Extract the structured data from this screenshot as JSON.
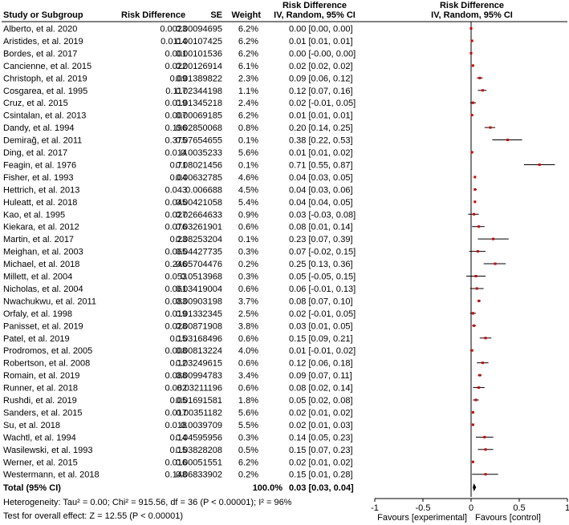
{
  "columns": {
    "study": "Study or Subgroup",
    "rd": "Risk Difference",
    "se": "SE",
    "weight": "Weight",
    "ci_title": "Risk Difference",
    "ci_sub": "IV, Random, 95% CI",
    "plot_title": "Risk Difference",
    "plot_sub": "IV, Random, 95% CI"
  },
  "total": {
    "label": "Total (95% CI)",
    "weight": "100.0%",
    "ci": "0.03 [0.03, 0.04]"
  },
  "heterogeneity": "Heterogeneity: Tau² = 0.00; Chi² = 915.56, df = 36 (P < 0.00001); I² = 96%",
  "overall_effect": "Test for overall effect: Z = 12.55 (P < 0.00001)",
  "colors": {
    "marker": "#cc0000",
    "line": "#000000"
  },
  "chart_data": {
    "type": "forest",
    "xlim": [
      -1,
      1
    ],
    "ticks": [
      -1,
      -0.5,
      0,
      0.5,
      1
    ],
    "tick_labels": [
      "-1",
      "-0.5",
      "0",
      "0.5",
      "1"
    ],
    "xlabel_left": "Favours [experimental]",
    "xlabel_right": "Favours [control]",
    "pooled": {
      "est": 0.03,
      "lo": 0.03,
      "hi": 0.04
    },
    "studies": [
      {
        "study": "Alberto, et al. 2020",
        "rd": "0.0023",
        "se": "0.00094695",
        "weight": "6.2%",
        "ci": "0.00 [0.00, 0.00]",
        "est": 0.0,
        "lo": 0.0,
        "hi": 0.0
      },
      {
        "study": "Aristides, et al. 2019",
        "rd": "0.0114",
        "se": "0.00107425",
        "weight": "6.2%",
        "ci": "0.01 [0.01, 0.01]",
        "est": 0.01,
        "lo": 0.01,
        "hi": 0.01
      },
      {
        "study": "Bordes, et al. 2017",
        "rd": "0.001",
        "se": "0.00101536",
        "weight": "6.2%",
        "ci": "0.00 [-0.00, 0.00]",
        "est": 0.0,
        "lo": -0.0,
        "hi": 0.0
      },
      {
        "study": "Cancienne, et al. 2015",
        "rd": "0.022",
        "se": "0.00126914",
        "weight": "6.1%",
        "ci": "0.02 [0.02, 0.02]",
        "est": 0.02,
        "lo": 0.02,
        "hi": 0.02
      },
      {
        "study": "Christoph, et al. 2019",
        "rd": "0.09",
        "se": "0.01389822",
        "weight": "2.3%",
        "ci": "0.09 [0.06, 0.12]",
        "est": 0.09,
        "lo": 0.06,
        "hi": 0.12
      },
      {
        "study": "Cosgarea, et al. 1995",
        "rd": "0.117",
        "se": "0.02344198",
        "weight": "1.1%",
        "ci": "0.12 [0.07, 0.16]",
        "est": 0.12,
        "lo": 0.07,
        "hi": 0.16
      },
      {
        "study": "Cruz, et al. 2015",
        "rd": "0.019",
        "se": "0.01345218",
        "weight": "2.4%",
        "ci": "0.02 [-0.01, 0.05]",
        "est": 0.02,
        "lo": -0.01,
        "hi": 0.05
      },
      {
        "study": "Csintalan, et al. 2013",
        "rd": "0.007",
        "se": "0.00069185",
        "weight": "6.2%",
        "ci": "0.01 [0.01, 0.01]",
        "est": 0.01,
        "lo": 0.01,
        "hi": 0.01
      },
      {
        "study": "Dandy, et al. 1994",
        "rd": "0.196",
        "se": "0.02850068",
        "weight": "0.8%",
        "ci": "0.20 [0.14, 0.25]",
        "est": 0.2,
        "lo": 0.14,
        "hi": 0.25
      },
      {
        "study": "Demirağ, et al. 2011",
        "rd": "0.375",
        "se": "0.07654655",
        "weight": "0.1%",
        "ci": "0.38 [0.22, 0.53]",
        "est": 0.38,
        "lo": 0.22,
        "hi": 0.53
      },
      {
        "study": "Ding, et al. 2017",
        "rd": "0.014",
        "se": "0.0035233",
        "weight": "5.6%",
        "ci": "0.01 [0.01, 0.02]",
        "est": 0.01,
        "lo": 0.01,
        "hi": 0.02
      },
      {
        "study": "Feagin, et al. 1976",
        "rd": "0.71",
        "se": "0.08021456",
        "weight": "0.1%",
        "ci": "0.71 [0.55, 0.87]",
        "est": 0.71,
        "lo": 0.55,
        "hi": 0.87
      },
      {
        "study": "Fisher, et al. 1993",
        "rd": "0.04",
        "se": "0.00632785",
        "weight": "4.6%",
        "ci": "0.04 [0.03, 0.05]",
        "est": 0.04,
        "lo": 0.03,
        "hi": 0.05
      },
      {
        "study": "Hettrich, et al. 2013",
        "rd": "0.043",
        "se": "0.006688",
        "weight": "4.5%",
        "ci": "0.04 [0.03, 0.06]",
        "est": 0.04,
        "lo": 0.03,
        "hi": 0.06
      },
      {
        "study": "Huleatt, et al. 2018",
        "rd": "0.045",
        "se": "0.00421058",
        "weight": "5.4%",
        "ci": "0.04 [0.04, 0.05]",
        "est": 0.04,
        "lo": 0.04,
        "hi": 0.05
      },
      {
        "study": "Kao, et al. 1995",
        "rd": "0.027",
        "se": "0.02664633",
        "weight": "0.9%",
        "ci": "0.03 [-0.03, 0.08]",
        "est": 0.03,
        "lo": -0.03,
        "hi": 0.08
      },
      {
        "study": "Kiekara, et al. 2012",
        "rd": "0.076",
        "se": "0.03261901",
        "weight": "0.6%",
        "ci": "0.08 [0.01, 0.14]",
        "est": 0.08,
        "lo": 0.01,
        "hi": 0.14
      },
      {
        "study": "Martin, et al. 2017",
        "rd": "0.23",
        "se": "0.08253204",
        "weight": "0.1%",
        "ci": "0.23 [0.07, 0.39]",
        "est": 0.23,
        "lo": 0.07,
        "hi": 0.39
      },
      {
        "study": "Meighan, et al. 2003",
        "rd": "0.065",
        "se": "0.04427735",
        "weight": "0.3%",
        "ci": "0.07 [-0.02, 0.15]",
        "est": 0.07,
        "lo": -0.02,
        "hi": 0.15
      },
      {
        "study": "Michael, et al. 2018",
        "rd": "0.246",
        "se": "0.05704476",
        "weight": "0.2%",
        "ci": "0.25 [0.13, 0.36]",
        "est": 0.25,
        "lo": 0.13,
        "hi": 0.36
      },
      {
        "study": "Millett, et al. 2004",
        "rd": "0.053",
        "se": "0.0513968",
        "weight": "0.3%",
        "ci": "0.05 [-0.05, 0.15]",
        "est": 0.05,
        "lo": -0.05,
        "hi": 0.15
      },
      {
        "study": "Nicholas, et al. 2004",
        "rd": "0.061",
        "se": "0.03419004",
        "weight": "0.6%",
        "ci": "0.06 [-0.01, 0.13]",
        "est": 0.06,
        "lo": -0.01,
        "hi": 0.13
      },
      {
        "study": "Nwachukwu, et al. 2011",
        "rd": "0.083",
        "se": "0.00903198",
        "weight": "3.7%",
        "ci": "0.08 [0.07, 0.10]",
        "est": 0.08,
        "lo": 0.07,
        "hi": 0.1
      },
      {
        "study": "Orfaly, et al. 1998",
        "rd": "0.019",
        "se": "0.01332345",
        "weight": "2.5%",
        "ci": "0.02 [-0.01, 0.05]",
        "est": 0.02,
        "lo": -0.01,
        "hi": 0.05
      },
      {
        "study": "Panisset, et al. 2019",
        "rd": "0.028",
        "se": "0.00871908",
        "weight": "3.8%",
        "ci": "0.03 [0.01, 0.05]",
        "est": 0.03,
        "lo": 0.01,
        "hi": 0.05
      },
      {
        "study": "Patel, et al. 2019",
        "rd": "0.15",
        "se": "0.03168496",
        "weight": "0.6%",
        "ci": "0.15 [0.09, 0.21]",
        "est": 0.15,
        "lo": 0.09,
        "hi": 0.21
      },
      {
        "study": "Prodromos, et al. 2005",
        "rd": "0.008",
        "se": "0.00813224",
        "weight": "4.0%",
        "ci": "0.01 [-0.01, 0.02]",
        "est": 0.01,
        "lo": -0.01,
        "hi": 0.02
      },
      {
        "study": "Robertson, et al. 2008",
        "rd": "0.12",
        "se": "0.03249615",
        "weight": "0.6%",
        "ci": "0.12 [0.06, 0.18]",
        "est": 0.12,
        "lo": 0.06,
        "hi": 0.18
      },
      {
        "study": "Romain, et al. 2019",
        "rd": "0.088",
        "se": "0.00994783",
        "weight": "3.4%",
        "ci": "0.09 [0.07, 0.11]",
        "est": 0.09,
        "lo": 0.07,
        "hi": 0.11
      },
      {
        "study": "Runner, et al. 2018",
        "rd": "0.082",
        "se": "0.03211196",
        "weight": "0.6%",
        "ci": "0.08 [0.02, 0.14]",
        "est": 0.08,
        "lo": 0.02,
        "hi": 0.14
      },
      {
        "study": "Rushdi, et al. 2019",
        "rd": "0.05",
        "se": "0.01691581",
        "weight": "1.8%",
        "ci": "0.05 [0.02, 0.08]",
        "est": 0.05,
        "lo": 0.02,
        "hi": 0.08
      },
      {
        "study": "Sanders, et al. 2015",
        "rd": "0.017",
        "se": "0.00351182",
        "weight": "5.6%",
        "ci": "0.02 [0.01, 0.02]",
        "est": 0.02,
        "lo": 0.01,
        "hi": 0.02
      },
      {
        "study": "Su, et al. 2018",
        "rd": "0.018",
        "se": "0.0039709",
        "weight": "5.5%",
        "ci": "0.02 [0.01, 0.03]",
        "est": 0.02,
        "lo": 0.01,
        "hi": 0.03
      },
      {
        "study": "Wachtl, et al. 1994",
        "rd": "0.14",
        "se": "0.04595956",
        "weight": "0.3%",
        "ci": "0.14 [0.05, 0.23]",
        "est": 0.14,
        "lo": 0.05,
        "hi": 0.23
      },
      {
        "study": "Wasilewski, et al. 1993",
        "rd": "0.15",
        "se": "0.03828208",
        "weight": "0.5%",
        "ci": "0.15 [0.07, 0.23]",
        "est": 0.15,
        "lo": 0.07,
        "hi": 0.23
      },
      {
        "study": "Werner, et al. 2015",
        "rd": "0.016",
        "se": "0.00051551",
        "weight": "6.2%",
        "ci": "0.02 [0.01, 0.02]",
        "est": 0.02,
        "lo": 0.01,
        "hi": 0.02
      },
      {
        "study": "Westermann, et al. 2018",
        "rd": "0.148",
        "se": "0.06833902",
        "weight": "0.2%",
        "ci": "0.15 [0.01, 0.28]",
        "est": 0.15,
        "lo": 0.01,
        "hi": 0.28
      }
    ]
  }
}
